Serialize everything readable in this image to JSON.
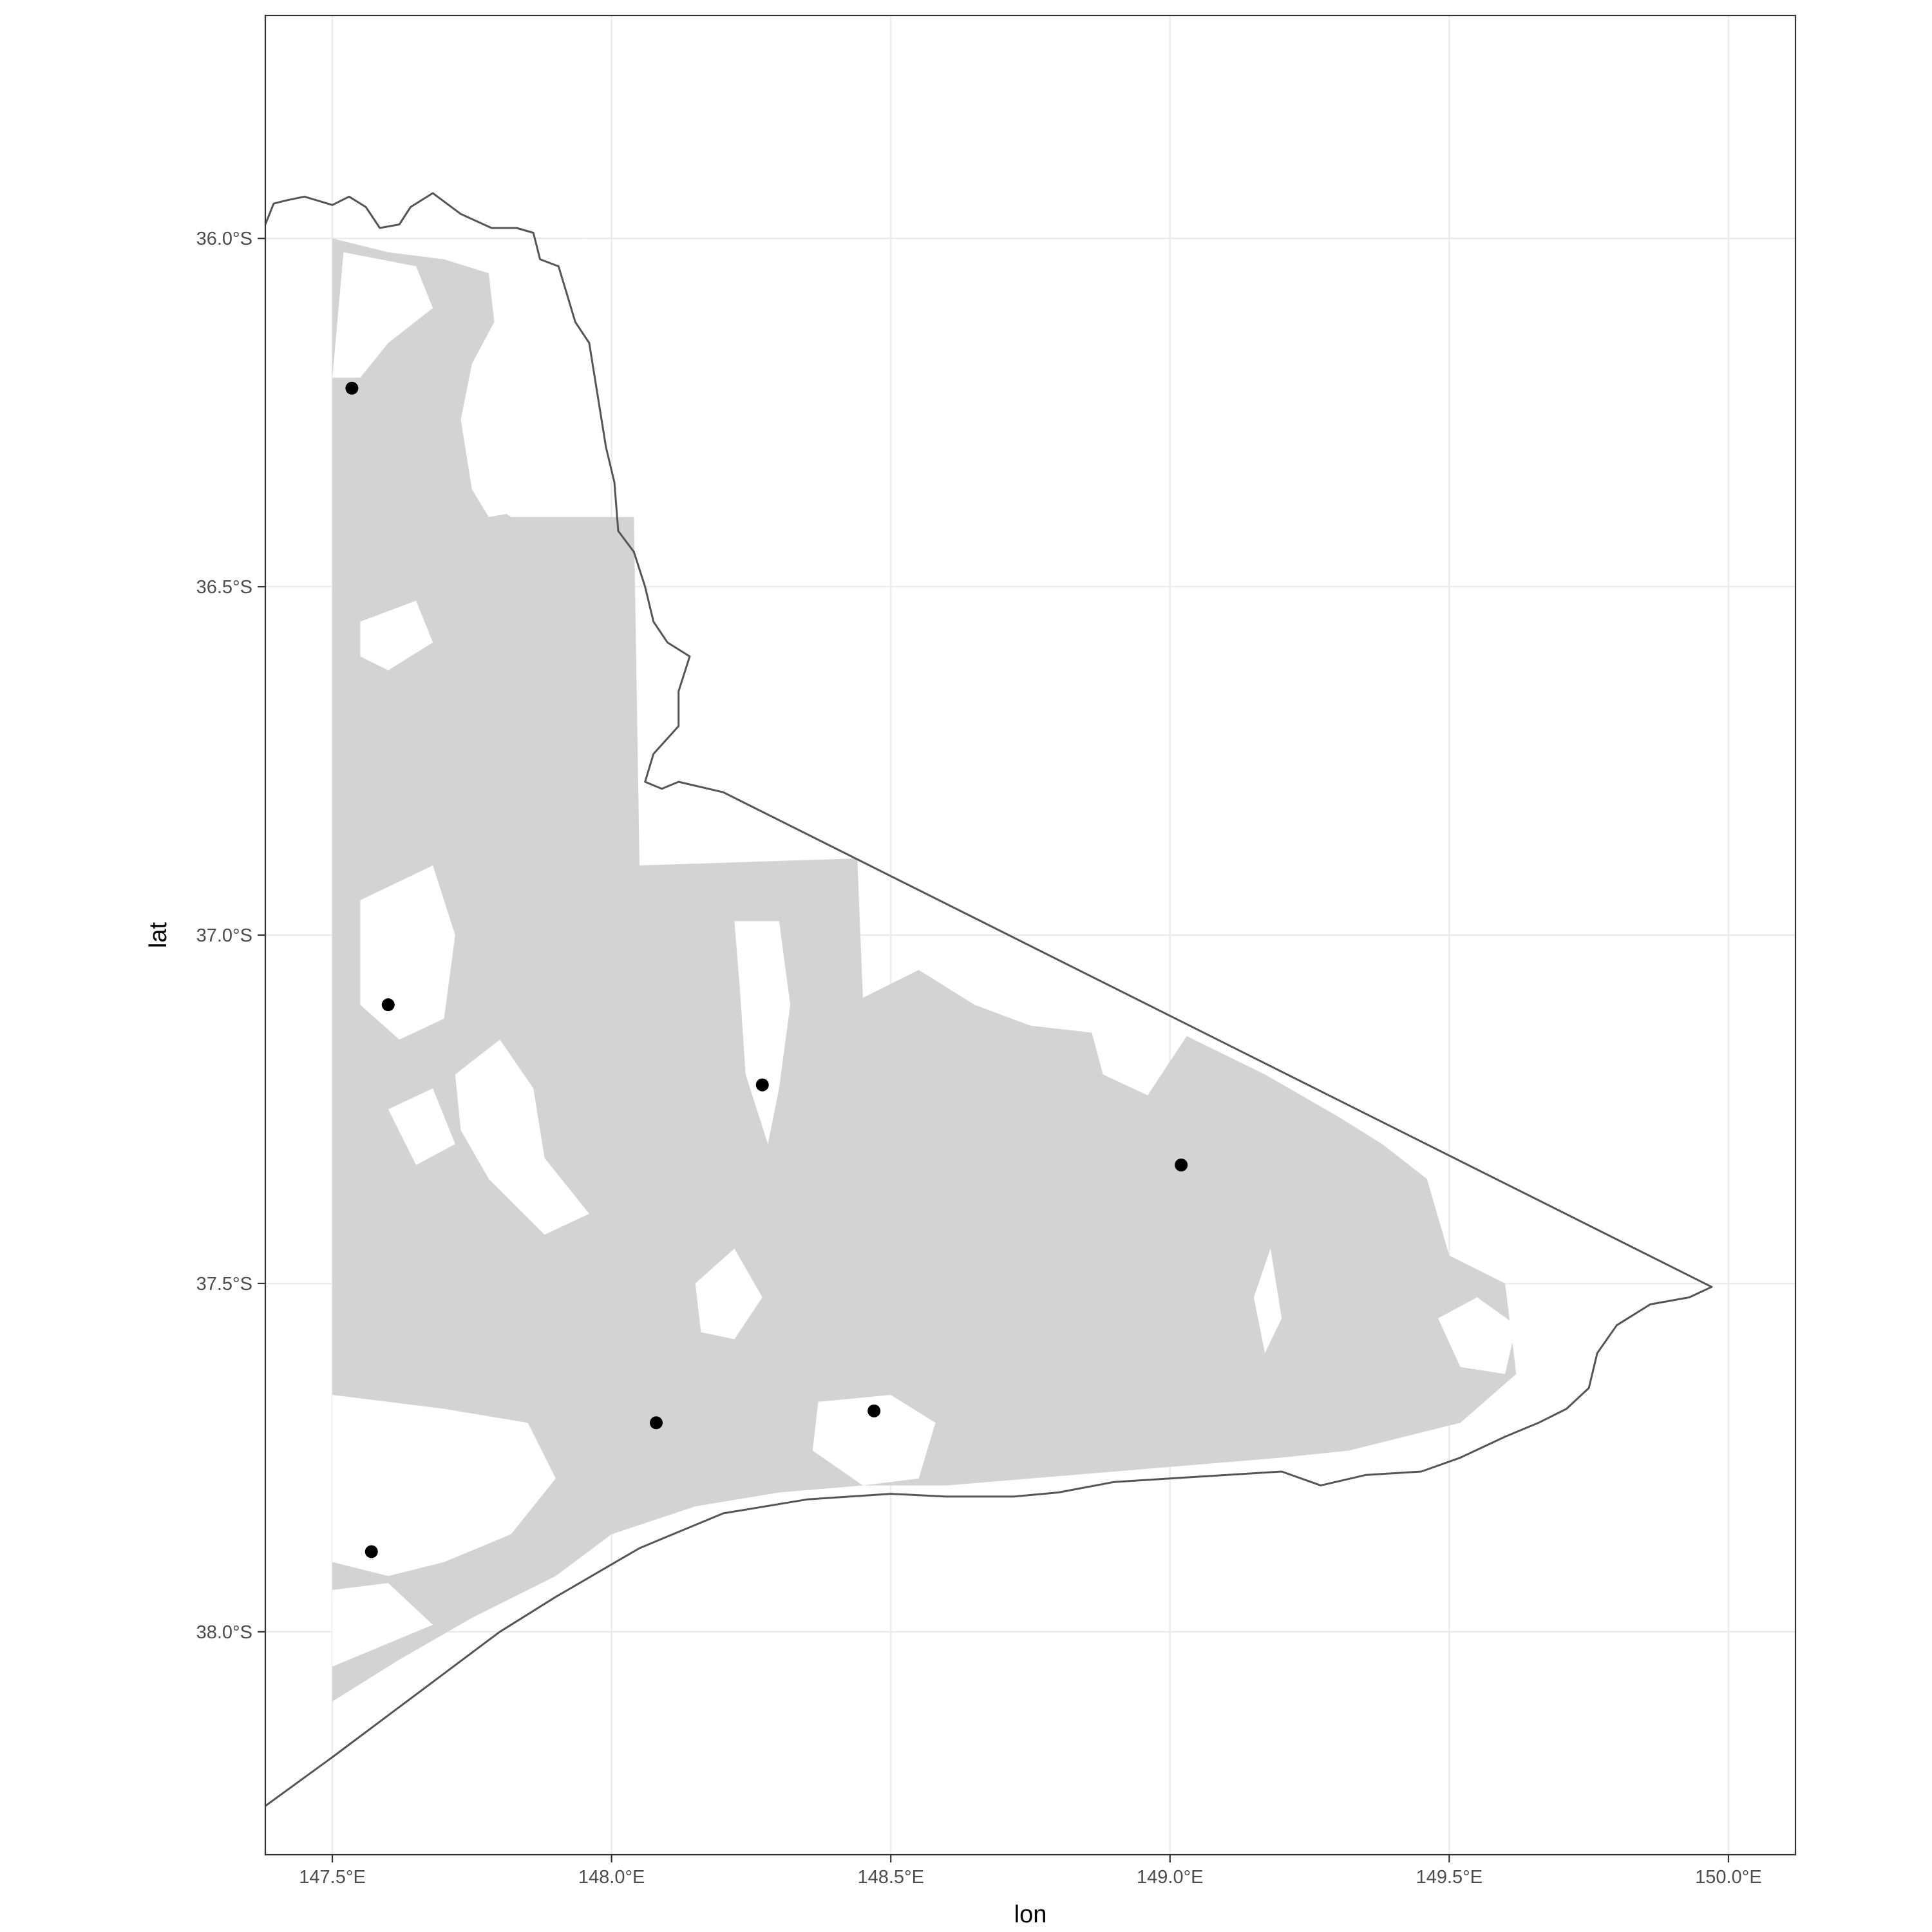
{
  "chart_data": {
    "type": "map",
    "xlabel": "lon",
    "ylabel": "lat",
    "xlim": [
      147.38,
      150.12
    ],
    "ylim": [
      -38.32,
      -35.68
    ],
    "x_ticks": [
      {
        "value": 147.5,
        "label": "147.5°E"
      },
      {
        "value": 148.0,
        "label": "148.0°E"
      },
      {
        "value": 148.5,
        "label": "148.5°E"
      },
      {
        "value": 149.0,
        "label": "149.0°E"
      },
      {
        "value": 149.5,
        "label": "149.5°E"
      },
      {
        "value": 150.0,
        "label": "150.0°E"
      }
    ],
    "y_ticks": [
      {
        "value": -36.0,
        "label": "36.0°S"
      },
      {
        "value": -36.5,
        "label": "36.5°S"
      },
      {
        "value": -37.0,
        "label": "37.0°S"
      },
      {
        "value": -37.5,
        "label": "37.5°S"
      },
      {
        "value": -38.0,
        "label": "38.0°S"
      }
    ],
    "grid": true,
    "points": [
      {
        "lon": 147.535,
        "lat": -36.215
      },
      {
        "lon": 147.6,
        "lat": -37.1
      },
      {
        "lon": 148.27,
        "lat": -37.215
      },
      {
        "lon": 149.02,
        "lat": -37.33
      },
      {
        "lon": 148.08,
        "lat": -37.7
      },
      {
        "lon": 148.47,
        "lat": -37.683
      },
      {
        "lon": 147.57,
        "lat": -37.885
      }
    ],
    "boundary": [
      [
        147.38,
        -35.98
      ],
      [
        147.395,
        -35.95
      ],
      [
        147.42,
        -35.945
      ],
      [
        147.45,
        -35.94
      ],
      [
        147.5,
        -35.952
      ],
      [
        147.53,
        -35.94
      ],
      [
        147.56,
        -35.955
      ],
      [
        147.585,
        -35.985
      ],
      [
        147.62,
        -35.98
      ],
      [
        147.64,
        -35.955
      ],
      [
        147.68,
        -35.935
      ],
      [
        147.73,
        -35.965
      ],
      [
        147.785,
        -35.985
      ],
      [
        147.83,
        -35.985
      ],
      [
        147.86,
        -35.992
      ],
      [
        147.872,
        -36.03
      ],
      [
        147.905,
        -36.04
      ],
      [
        147.92,
        -36.08
      ],
      [
        147.935,
        -36.12
      ],
      [
        147.96,
        -36.15
      ],
      [
        147.97,
        -36.2
      ],
      [
        147.98,
        -36.25
      ],
      [
        147.99,
        -36.3
      ],
      [
        148.005,
        -36.35
      ],
      [
        148.012,
        -36.42
      ],
      [
        148.04,
        -36.45
      ],
      [
        148.06,
        -36.5
      ],
      [
        148.075,
        -36.55
      ],
      [
        148.1,
        -36.58
      ],
      [
        148.14,
        -36.6
      ],
      [
        148.12,
        -36.65
      ],
      [
        148.12,
        -36.7
      ],
      [
        148.075,
        -36.74
      ],
      [
        148.06,
        -36.78
      ],
      [
        148.09,
        -36.79
      ],
      [
        148.12,
        -36.78
      ],
      [
        148.2,
        -36.795
      ],
      [
        149.97,
        -37.505
      ],
      [
        149.93,
        -37.52
      ],
      [
        149.86,
        -37.53
      ],
      [
        149.8,
        -37.56
      ],
      [
        149.765,
        -37.6
      ],
      [
        149.75,
        -37.65
      ],
      [
        149.71,
        -37.68
      ],
      [
        149.66,
        -37.7
      ],
      [
        149.6,
        -37.72
      ],
      [
        149.52,
        -37.75
      ],
      [
        149.45,
        -37.77
      ],
      [
        149.35,
        -37.775
      ],
      [
        149.27,
        -37.79
      ],
      [
        149.2,
        -37.77
      ],
      [
        149.1,
        -37.775
      ],
      [
        149.0,
        -37.78
      ],
      [
        148.9,
        -37.785
      ],
      [
        148.8,
        -37.8
      ],
      [
        148.72,
        -37.806
      ],
      [
        148.6,
        -37.806
      ],
      [
        148.5,
        -37.802
      ],
      [
        148.35,
        -37.81
      ],
      [
        148.2,
        -37.83
      ],
      [
        148.05,
        -37.88
      ],
      [
        147.9,
        -37.95
      ],
      [
        147.8,
        -38.0
      ],
      [
        147.7,
        -38.06
      ],
      [
        147.6,
        -38.12
      ],
      [
        147.5,
        -38.18
      ],
      [
        147.38,
        -38.25
      ]
    ],
    "forest": [
      [
        147.5,
        -36.0
      ],
      [
        147.6,
        -36.02
      ],
      [
        147.7,
        -36.03
      ],
      [
        147.78,
        -36.05
      ],
      [
        147.79,
        -36.12
      ],
      [
        147.75,
        -36.18
      ],
      [
        147.73,
        -36.26
      ],
      [
        147.75,
        -36.36
      ],
      [
        147.82,
        -36.4
      ],
      [
        148.04,
        -36.4
      ],
      [
        148.05,
        -36.9
      ],
      [
        148.44,
        -36.89
      ],
      [
        148.45,
        -37.09
      ],
      [
        148.55,
        -37.05
      ],
      [
        148.65,
        -37.1
      ],
      [
        148.75,
        -37.13
      ],
      [
        148.86,
        -37.14
      ],
      [
        148.88,
        -37.2
      ],
      [
        148.96,
        -37.23
      ],
      [
        149.03,
        -37.145
      ],
      [
        149.17,
        -37.2
      ],
      [
        149.3,
        -37.26
      ],
      [
        149.38,
        -37.3
      ],
      [
        149.46,
        -37.35
      ],
      [
        149.5,
        -37.46
      ],
      [
        149.6,
        -37.5
      ],
      [
        149.62,
        -37.63
      ],
      [
        149.52,
        -37.7
      ],
      [
        149.42,
        -37.72
      ],
      [
        149.32,
        -37.74
      ],
      [
        149.2,
        -37.75
      ],
      [
        149.05,
        -37.76
      ],
      [
        148.9,
        -37.77
      ],
      [
        148.75,
        -37.78
      ],
      [
        148.6,
        -37.79
      ],
      [
        148.45,
        -37.79
      ],
      [
        148.3,
        -37.8
      ],
      [
        148.15,
        -37.82
      ],
      [
        148.0,
        -37.86
      ],
      [
        147.9,
        -37.92
      ],
      [
        147.75,
        -37.98
      ],
      [
        147.62,
        -38.04
      ],
      [
        147.5,
        -38.1
      ]
    ],
    "clearings": [
      [
        [
          147.95,
          -36.0
        ],
        [
          147.95,
          -36.25
        ],
        [
          147.98,
          -36.35
        ],
        [
          147.92,
          -36.38
        ],
        [
          147.78,
          -36.4
        ],
        [
          147.75,
          -36.36
        ],
        [
          147.75,
          -36.25
        ],
        [
          147.8,
          -36.15
        ],
        [
          147.85,
          -36.08
        ],
        [
          147.92,
          -36.02
        ]
      ],
      [
        [
          147.52,
          -36.02
        ],
        [
          147.65,
          -36.04
        ],
        [
          147.68,
          -36.1
        ],
        [
          147.6,
          -36.15
        ],
        [
          147.55,
          -36.2
        ],
        [
          147.5,
          -36.2
        ]
      ],
      [
        [
          147.55,
          -36.55
        ],
        [
          147.65,
          -36.52
        ],
        [
          147.68,
          -36.58
        ],
        [
          147.6,
          -36.62
        ],
        [
          147.55,
          -36.6
        ]
      ],
      [
        [
          147.55,
          -36.95
        ],
        [
          147.68,
          -36.9
        ],
        [
          147.72,
          -37.0
        ],
        [
          147.7,
          -37.12
        ],
        [
          147.62,
          -37.15
        ],
        [
          147.55,
          -37.1
        ]
      ],
      [
        [
          147.72,
          -37.2
        ],
        [
          147.8,
          -37.15
        ],
        [
          147.86,
          -37.22
        ],
        [
          147.88,
          -37.32
        ],
        [
          147.96,
          -37.4
        ],
        [
          147.88,
          -37.43
        ],
        [
          147.78,
          -37.35
        ],
        [
          147.73,
          -37.28
        ]
      ],
      [
        [
          147.6,
          -37.25
        ],
        [
          147.68,
          -37.22
        ],
        [
          147.72,
          -37.3
        ],
        [
          147.65,
          -37.33
        ]
      ],
      [
        [
          148.22,
          -36.98
        ],
        [
          148.3,
          -36.98
        ],
        [
          148.32,
          -37.1
        ],
        [
          148.3,
          -37.22
        ],
        [
          148.28,
          -37.3
        ],
        [
          148.24,
          -37.2
        ],
        [
          148.23,
          -37.08
        ]
      ],
      [
        [
          148.15,
          -37.5
        ],
        [
          148.22,
          -37.45
        ],
        [
          148.27,
          -37.52
        ],
        [
          148.22,
          -37.58
        ],
        [
          148.16,
          -37.57
        ]
      ],
      [
        [
          147.5,
          -37.66
        ],
        [
          147.7,
          -37.68
        ],
        [
          147.85,
          -37.7
        ],
        [
          147.9,
          -37.78
        ],
        [
          147.82,
          -37.86
        ],
        [
          147.7,
          -37.9
        ],
        [
          147.6,
          -37.92
        ],
        [
          147.5,
          -37.9
        ]
      ],
      [
        [
          148.37,
          -37.67
        ],
        [
          148.5,
          -37.66
        ],
        [
          148.58,
          -37.7
        ],
        [
          148.55,
          -37.78
        ],
        [
          148.45,
          -37.79
        ],
        [
          148.36,
          -37.74
        ]
      ],
      [
        [
          149.48,
          -37.55
        ],
        [
          149.55,
          -37.52
        ],
        [
          149.62,
          -37.56
        ],
        [
          149.6,
          -37.63
        ],
        [
          149.52,
          -37.62
        ]
      ],
      [
        [
          149.15,
          -37.52
        ],
        [
          149.18,
          -37.45
        ],
        [
          149.2,
          -37.55
        ],
        [
          149.17,
          -37.6
        ]
      ],
      [
        [
          147.5,
          -37.94
        ],
        [
          147.6,
          -37.93
        ],
        [
          147.68,
          -37.99
        ],
        [
          147.5,
          -38.05
        ]
      ]
    ]
  }
}
